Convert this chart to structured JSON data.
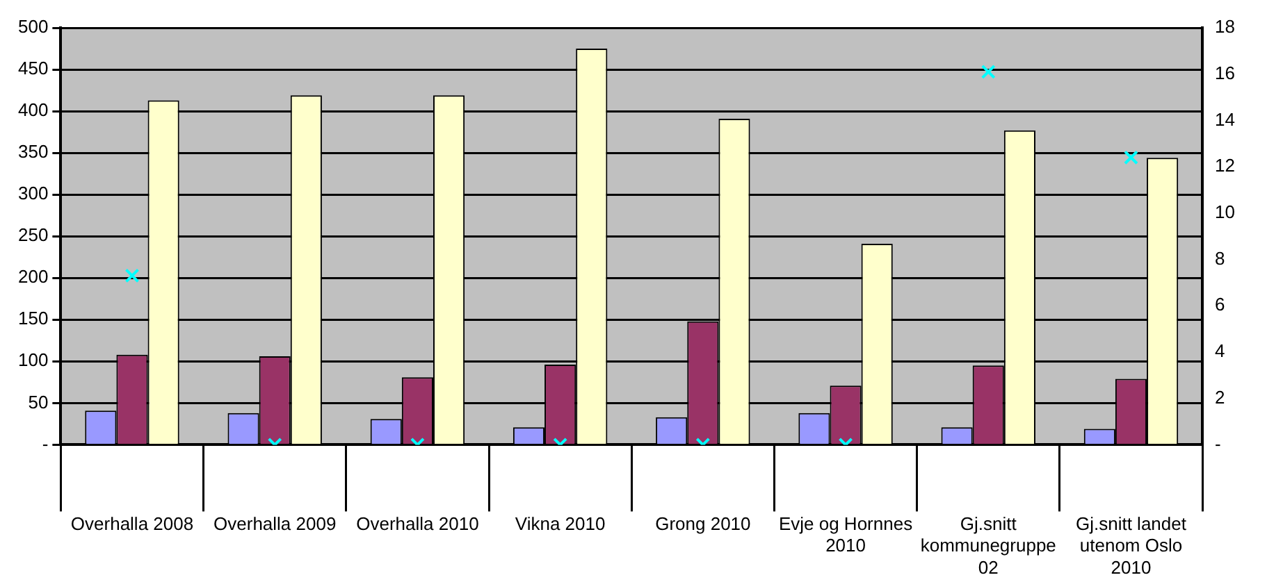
{
  "chart_data": {
    "type": "bar",
    "categories": [
      "Overhalla 2008",
      "Overhalla 2009",
      "Overhalla 2010",
      "Vikna 2010",
      "Grong 2010",
      "Evje og Hornnes 2010",
      "Gj.snitt kommunegruppe 02",
      "Gj.snitt landet utenom Oslo 2010"
    ],
    "series": [
      {
        "color": "#9999ff",
        "values": [
          41,
          38,
          31,
          21,
          33,
          38,
          21,
          19
        ]
      },
      {
        "color": "#993366",
        "values": [
          108,
          106,
          81,
          96,
          148,
          71,
          95,
          79
        ]
      },
      {
        "color": "#ffffcc",
        "values": [
          413,
          419,
          419,
          475,
          391,
          241,
          377,
          344
        ]
      },
      {
        "type": "scatter",
        "axis": "y2",
        "color": "#00ffff",
        "marker": "cross",
        "x": [
          "Overhalla 2008",
          "Overhalla 2009",
          "Overhalla 2010",
          "Vikna 2010",
          "Grong 2010",
          "Evje og Hornnes 2010",
          "Gj.snitt kommunegruppe 02",
          "Gj.snitt landet utenom Oslo 2010"
        ],
        "values": [
          7.3,
          0,
          0,
          0,
          0,
          0,
          16.1,
          12.4
        ]
      }
    ],
    "ylim": [
      0,
      500
    ],
    "yticks": [
      {
        "value": 0,
        "label": "-"
      },
      50,
      100,
      150,
      200,
      250,
      300,
      350,
      400,
      450,
      500
    ],
    "y2lim": [
      0,
      18
    ],
    "y2ticks": [
      {
        "value": 0,
        "label": "-"
      },
      2,
      4,
      6,
      8,
      10,
      12,
      14,
      16,
      18
    ],
    "grid": "y",
    "legend": false
  }
}
